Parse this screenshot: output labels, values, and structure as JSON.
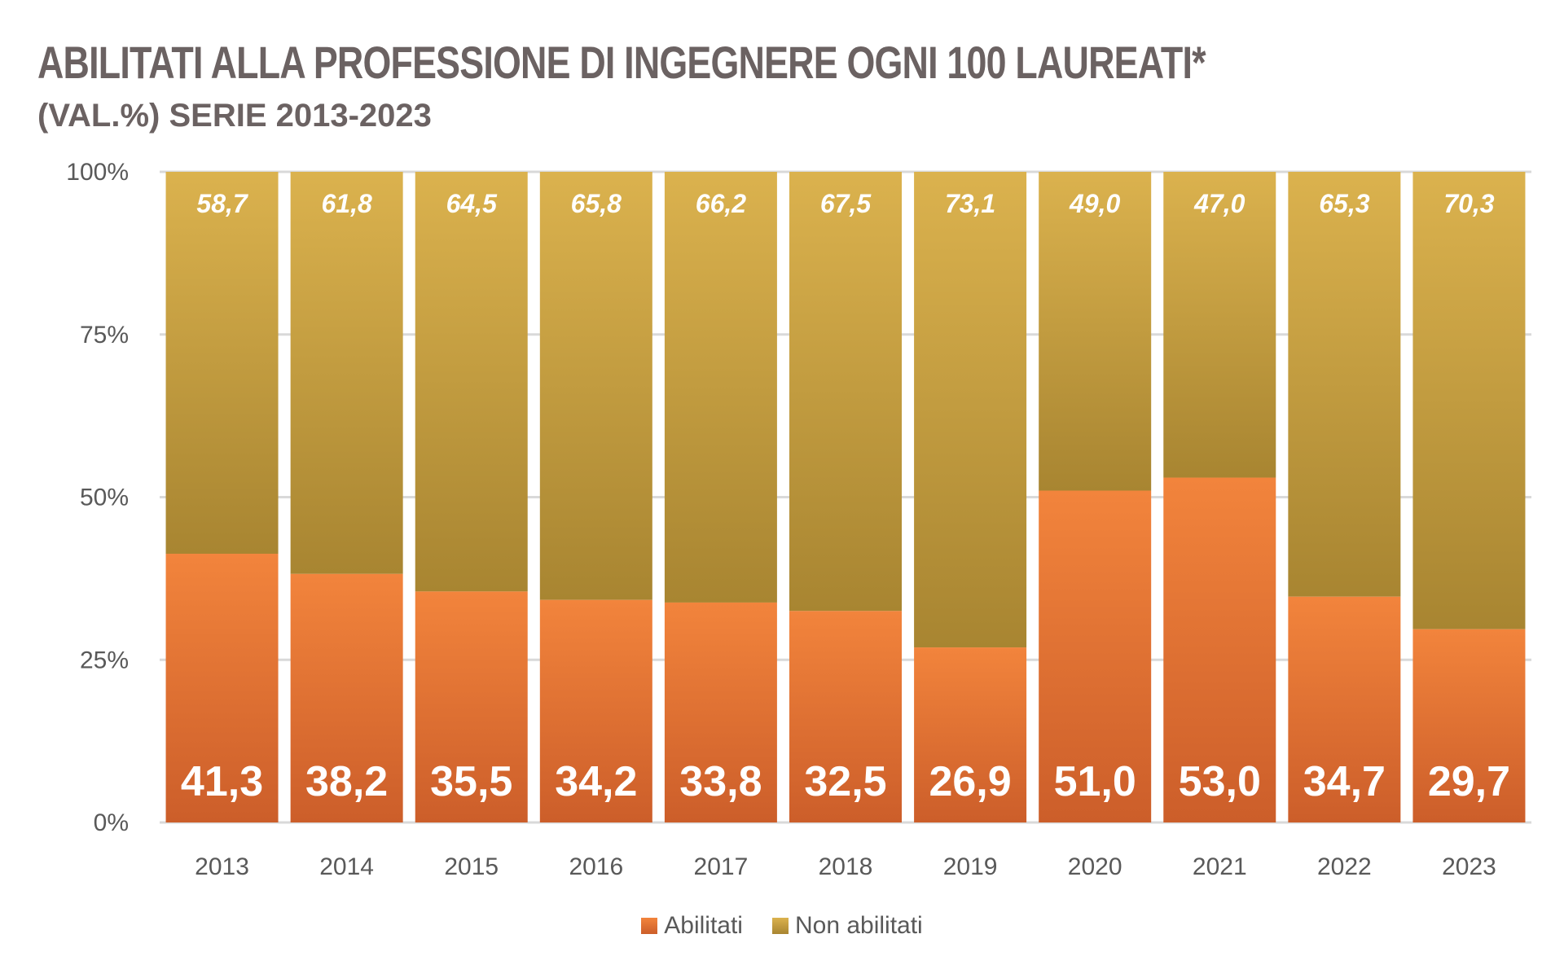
{
  "chart_data": {
    "type": "bar",
    "stacked": true,
    "percent_stacked": true,
    "title": "ABILITATI ALLA PROFESSIONE DI INGEGNERE OGNI 100 LAUREATI*",
    "subtitle": "(VAL.%) SERIE 2013-2023",
    "categories": [
      "2013",
      "2014",
      "2015",
      "2016",
      "2017",
      "2018",
      "2019",
      "2020",
      "2021",
      "2022",
      "2023"
    ],
    "series": [
      {
        "name": "Abilitati",
        "values": [
          41.3,
          38.2,
          35.5,
          34.2,
          33.8,
          32.5,
          26.9,
          51.0,
          53.0,
          34.7,
          29.7
        ],
        "labels": [
          "41,3",
          "38,2",
          "35,5",
          "34,2",
          "33,8",
          "32,5",
          "26,9",
          "51,0",
          "53,0",
          "34,7",
          "29,7"
        ],
        "color": "#e8763a"
      },
      {
        "name": "Non abilitati",
        "values": [
          58.7,
          61.8,
          64.5,
          65.8,
          66.2,
          67.5,
          73.1,
          49.0,
          47.0,
          65.3,
          70.3
        ],
        "labels": [
          "58,7",
          "61,8",
          "64,5",
          "65,8",
          "66,2",
          "67,5",
          "73,1",
          "49,0",
          "47,0",
          "65,3",
          "70,3"
        ],
        "color": "#c9a544"
      }
    ],
    "y_ticks": [
      "0%",
      "25%",
      "50%",
      "75%",
      "100%"
    ],
    "ylim": [
      0,
      100
    ],
    "grid": true,
    "legend_position": "bottom"
  }
}
